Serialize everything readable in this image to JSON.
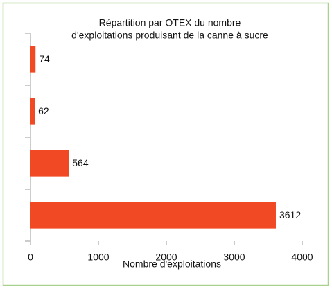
{
  "chart_data": {
    "type": "bar",
    "orientation": "horizontal",
    "title": [
      "Répartition par OTEX du nombre",
      "d'exploitations produisant de la canne à sucre"
    ],
    "x_label": "Nombre d'exploitations",
    "categories": [
      null,
      null,
      null,
      null
    ],
    "values": [
      74,
      62,
      564,
      3612
    ],
    "color": "#f04923",
    "xlim": [
      0,
      4000
    ],
    "xticks": [
      0,
      1000,
      2000,
      3000,
      4000
    ],
    "grid": false
  }
}
